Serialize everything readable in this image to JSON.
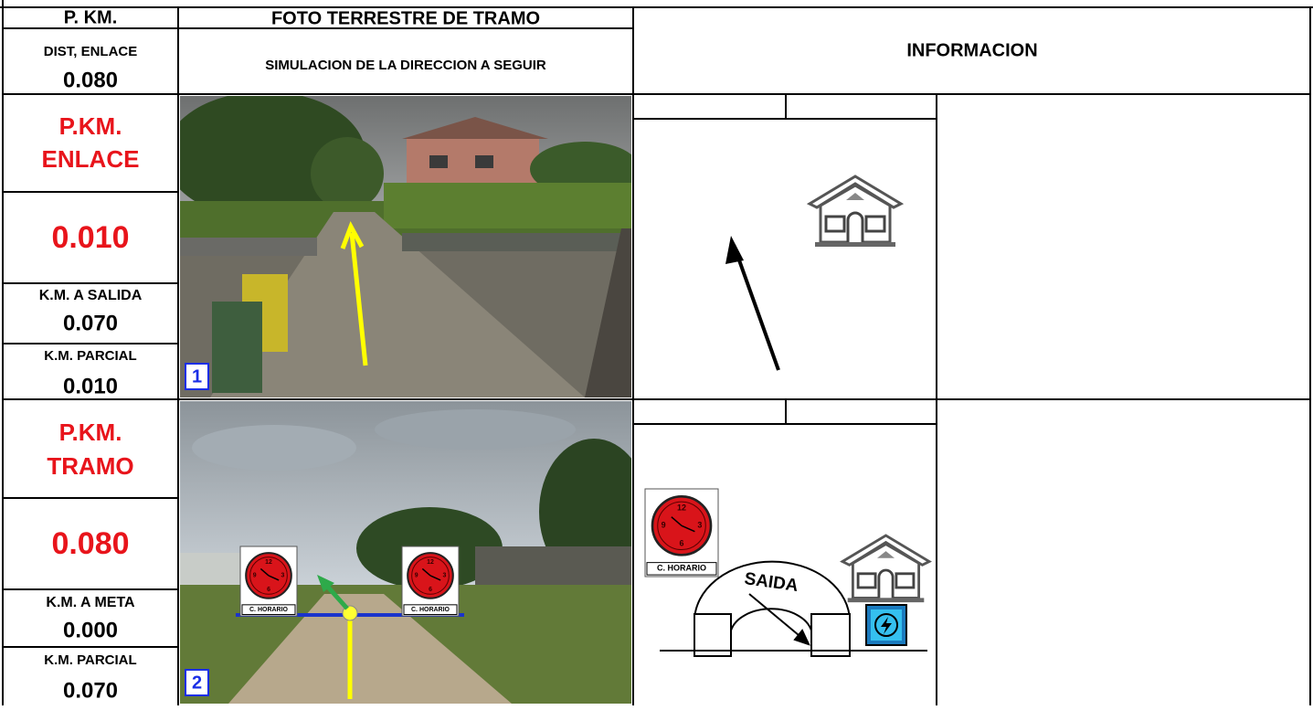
{
  "header": {
    "pkm": "P. KM.",
    "photo_title": "FOTO TERRESTRE DE TRAMO",
    "info_title": "INFORMACION",
    "dist_label": "DIST, ENLACE",
    "dist_value": "0.080",
    "photo_subtitle": "SIMULACION DE LA DIRECCION A SEGUIR"
  },
  "rows": [
    {
      "pkm_label": [
        "P.KM.",
        "ENLACE"
      ],
      "pkm_value": "0.010",
      "remaining_label": "K.M. A SALIDA",
      "remaining_value": "0.070",
      "partial_label": "K.M. PARCIAL",
      "partial_value": "0.010",
      "photo_number": "1"
    },
    {
      "pkm_label": [
        "P.KM.",
        "TRAMO"
      ],
      "pkm_value": "0.080",
      "remaining_label": "K.M. A META",
      "remaining_value": "0.000",
      "partial_label": "K.M. PARCIAL",
      "partial_value": "0.070",
      "photo_number": "2",
      "sign_label": "C. HORARIO",
      "exit_label": "SAIDA"
    }
  ],
  "clock_numerals": [
    "12",
    "3",
    "6",
    "9"
  ]
}
